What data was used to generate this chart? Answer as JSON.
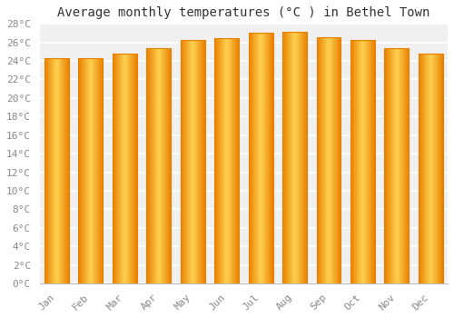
{
  "title": "Average monthly temperatures (°C ) in Bethel Town",
  "months": [
    "Jan",
    "Feb",
    "Mar",
    "Apr",
    "May",
    "Jun",
    "Jul",
    "Aug",
    "Sep",
    "Oct",
    "Nov",
    "Dec"
  ],
  "values": [
    24.3,
    24.3,
    24.8,
    25.4,
    26.3,
    26.5,
    27.0,
    27.1,
    26.6,
    26.3,
    25.4,
    24.8
  ],
  "bar_color_center": "#FFD050",
  "bar_color_edge": "#E88000",
  "background_color": "#FFFFFF",
  "plot_bg_color": "#F0F0F0",
  "grid_color": "#FFFFFF",
  "ylim": [
    0,
    28
  ],
  "ytick_step": 2,
  "title_fontsize": 10,
  "tick_fontsize": 8,
  "tick_color": "#888888",
  "title_color": "#333333",
  "font_family": "monospace"
}
